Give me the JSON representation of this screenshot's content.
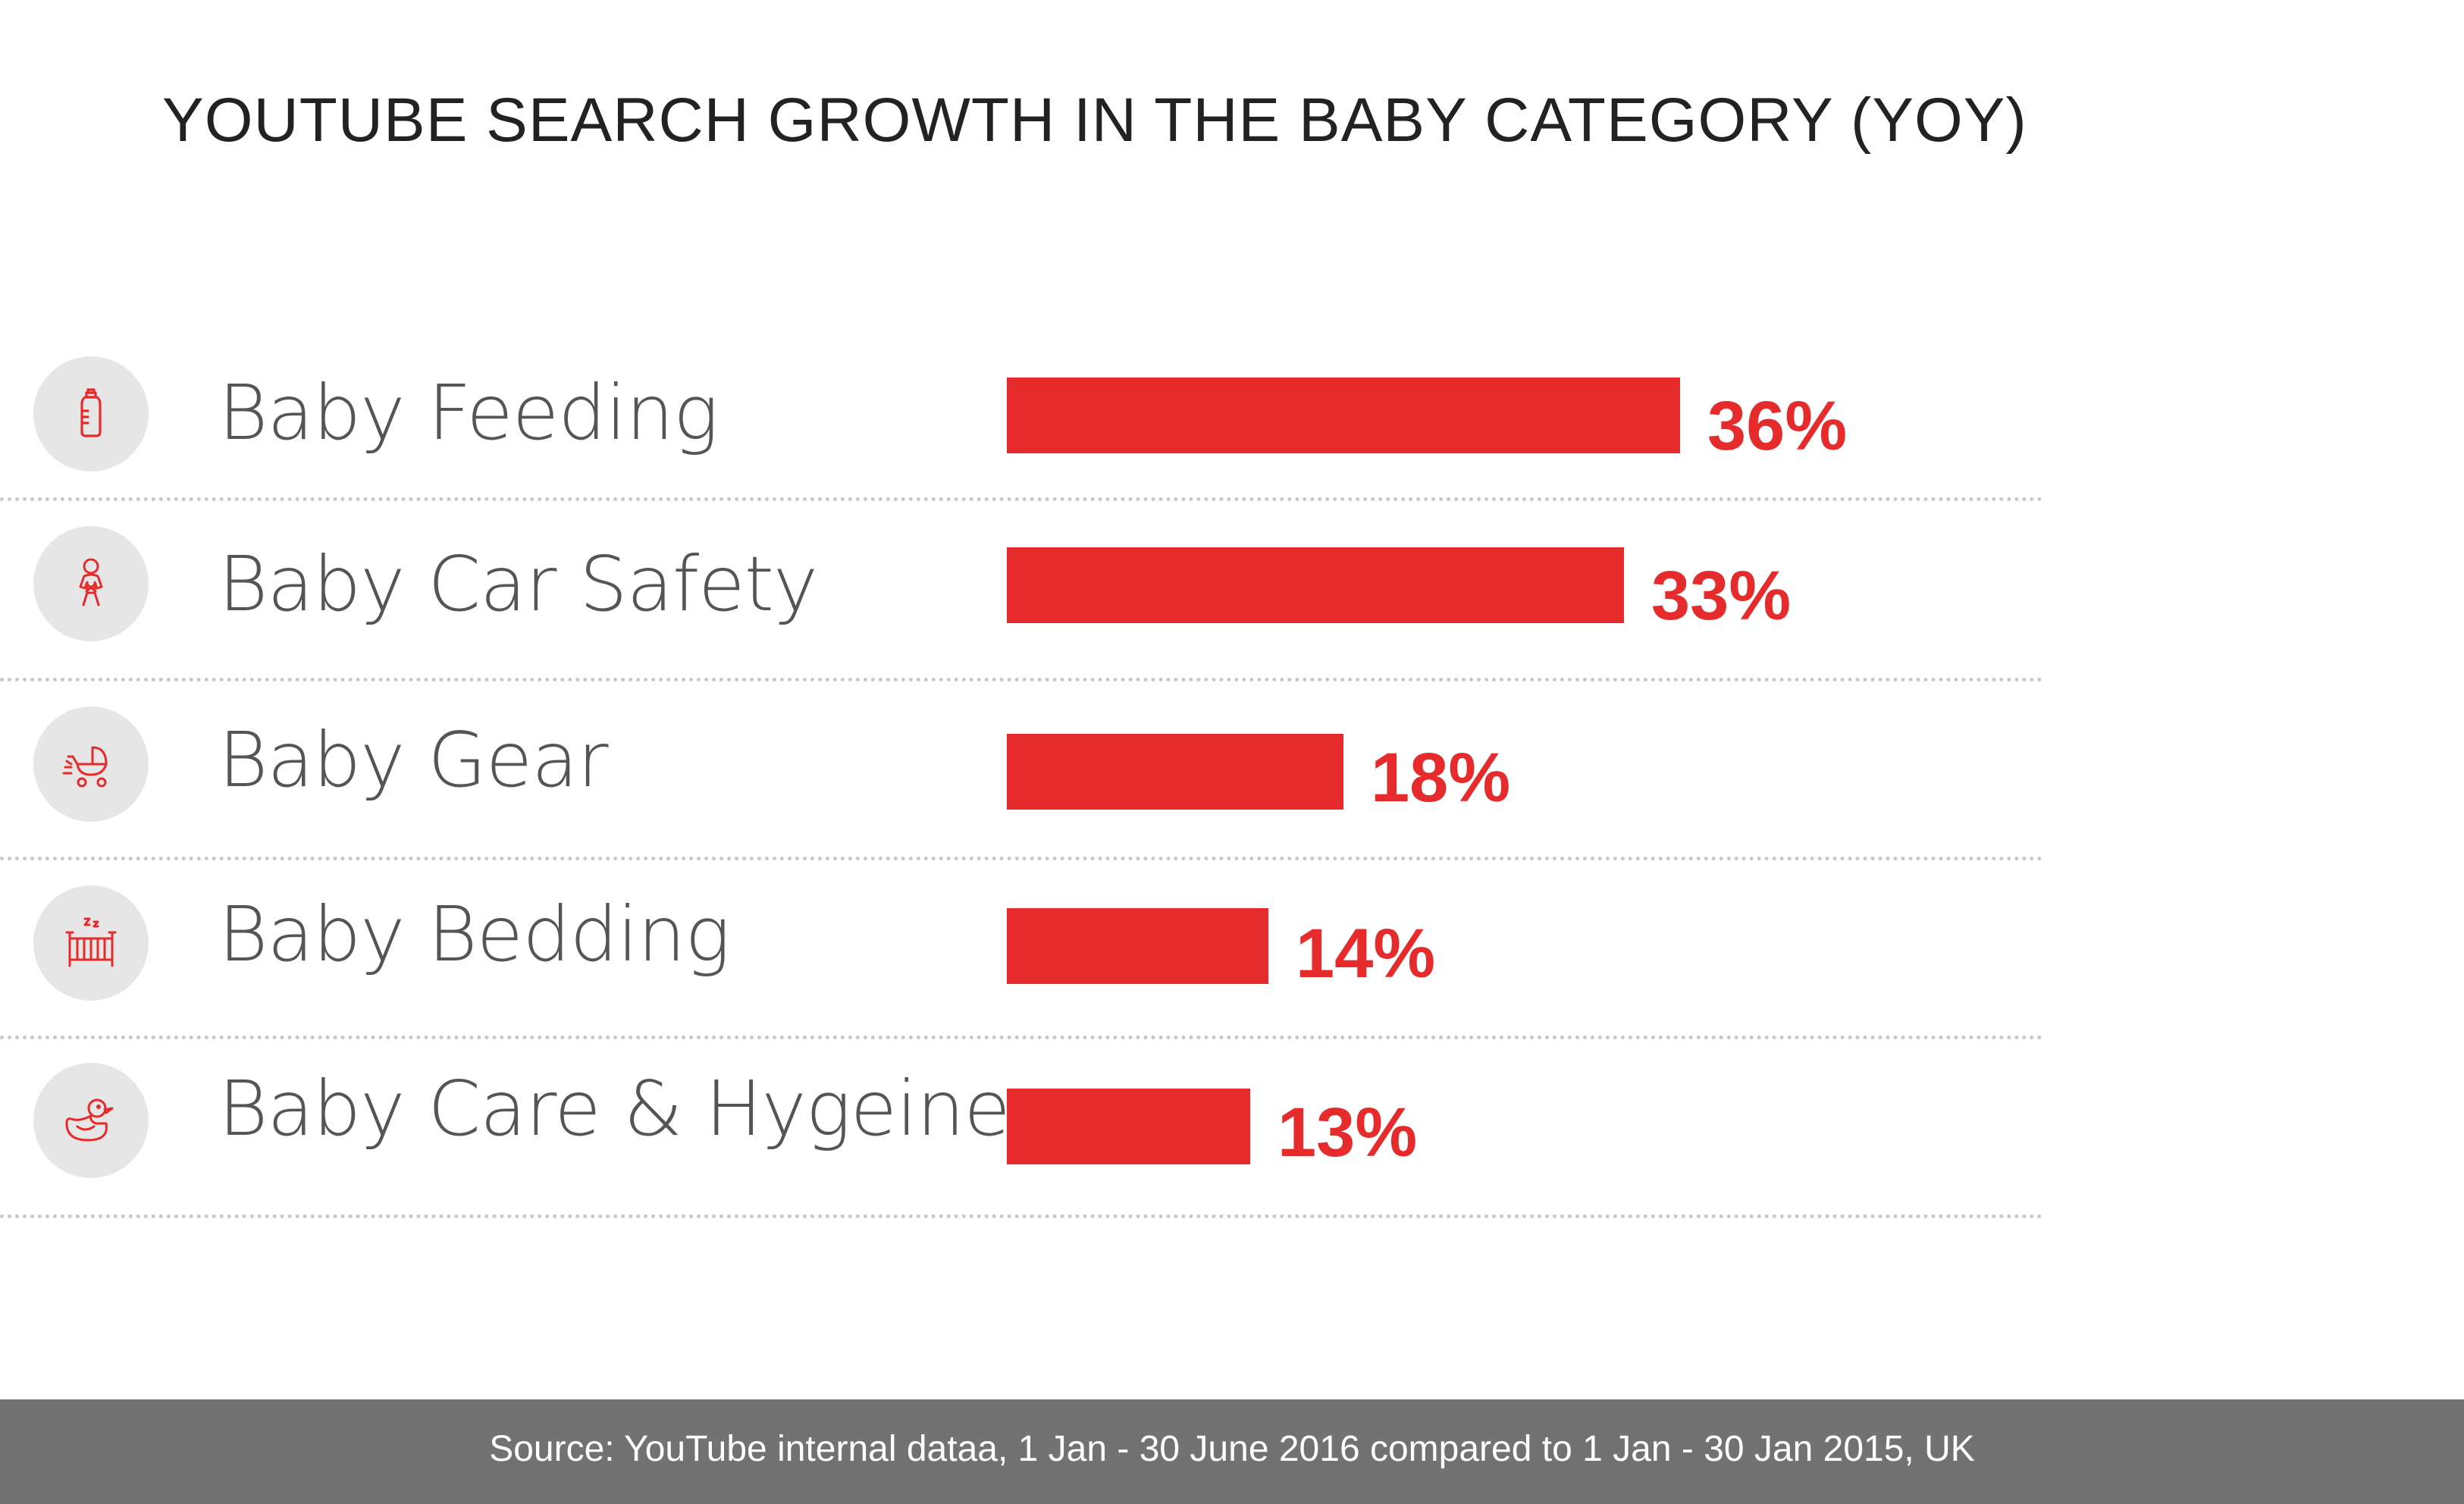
{
  "chart_data": {
    "type": "bar",
    "orientation": "horizontal",
    "title": "YOUTUBE SEARCH GROWTH IN THE BABY CATEGORY (YOY)",
    "categories": [
      "Baby Feeding",
      "Baby Car Safety",
      "Baby Gear",
      "Baby Bedding",
      "Baby Care & Hygeine"
    ],
    "values": [
      36,
      33,
      18,
      14,
      13
    ],
    "value_labels": [
      "36%",
      "33%",
      "18%",
      "14%",
      "13%"
    ],
    "icons": [
      "baby-bottle-icon",
      "baby-car-seat-icon",
      "baby-stroller-icon",
      "baby-crib-icon",
      "rubber-duck-icon"
    ],
    "bar_color": "#e52b2b",
    "icon_color": "#e52b2b",
    "icon_background": "#e6e6e6",
    "grid": false,
    "legend": "none",
    "xlim": [
      0,
      36
    ]
  },
  "footer": {
    "source": "Source: YouTube internal dataa, 1 Jan - 30 June 2016 compared to 1 Jan - 30 Jan 2015, UK",
    "background": "#727272"
  }
}
